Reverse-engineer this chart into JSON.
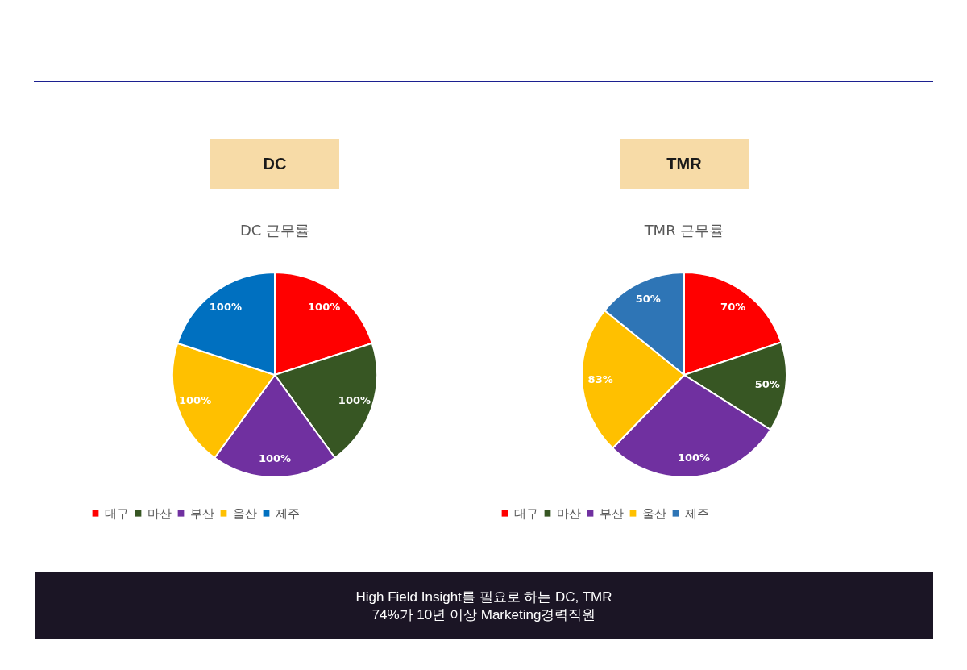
{
  "chart_data": [
    {
      "type": "pie",
      "title": "DC",
      "subtitle": "DC 근무률",
      "categories": [
        "대구",
        "마산",
        "부산",
        "울산",
        "제주"
      ],
      "values": [
        100,
        100,
        100,
        100,
        100
      ],
      "value_labels": [
        "100%",
        "100%",
        "100%",
        "100%",
        "100%"
      ],
      "colors": [
        "#ff0000",
        "#375623",
        "#7030a0",
        "#ffc000",
        "#0070c0"
      ],
      "legend": "bottom"
    },
    {
      "type": "pie",
      "title": "TMR",
      "subtitle": "TMR 근무률",
      "categories": [
        "대구",
        "마산",
        "부산",
        "울산",
        "제주"
      ],
      "values": [
        70,
        50,
        100,
        83,
        50
      ],
      "value_labels": [
        "70%",
        "50%",
        "100%",
        "83%",
        "50%"
      ],
      "colors": [
        "#ff0000",
        "#375623",
        "#7030a0",
        "#ffc000",
        "#2e75b6"
      ],
      "legend": "bottom"
    },
    {
      "type": "other",
      "annotations": [
        "High Field Insight를 필요로 하는 DC, TMR",
        "74%가 10년 이상 Marketing경력직원"
      ]
    }
  ]
}
